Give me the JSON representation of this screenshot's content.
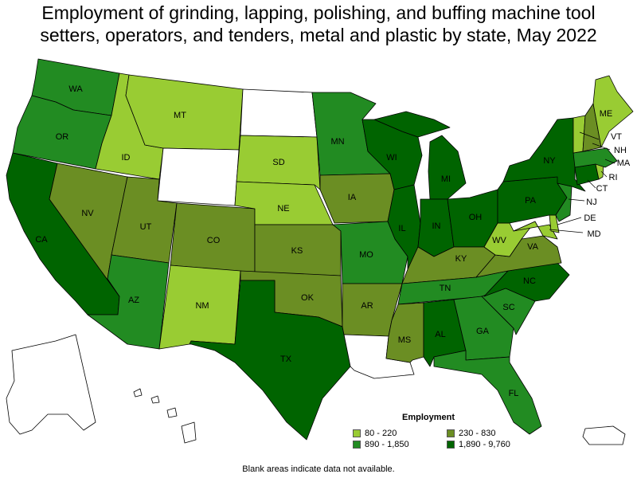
{
  "title": {
    "line1": "Employment of grinding, lapping, polishing, and buffing machine tool",
    "line2": "setters, operators, and tenders, metal and plastic by state, May 2022"
  },
  "legend": {
    "title": "Employment",
    "items": [
      {
        "label": "80 - 220",
        "color": "#99cc33"
      },
      {
        "label": "230 - 830",
        "color": "#6b8e23"
      },
      {
        "label": "890 - 1,850",
        "color": "#228b22"
      },
      {
        "label": "1,890 - 9,760",
        "color": "#006400"
      }
    ]
  },
  "footnote": "Blank areas indicate data not available.",
  "colors": {
    "bin1": "#99cc33",
    "bin2": "#6b8e23",
    "bin3": "#228b22",
    "bin4": "#006400",
    "no_data": "#ffffff"
  },
  "states": {
    "WA": {
      "label": "WA",
      "bin": 3
    },
    "OR": {
      "label": "OR",
      "bin": 3
    },
    "CA": {
      "label": "CA",
      "bin": 4
    },
    "ID": {
      "label": "ID",
      "bin": 1
    },
    "NV": {
      "label": "NV",
      "bin": 2
    },
    "MT": {
      "label": "MT",
      "bin": 1
    },
    "WY": {
      "label": "",
      "bin": 0
    },
    "UT": {
      "label": "UT",
      "bin": 2
    },
    "AZ": {
      "label": "AZ",
      "bin": 3
    },
    "CO": {
      "label": "CO",
      "bin": 2
    },
    "NM": {
      "label": "NM",
      "bin": 1
    },
    "ND": {
      "label": "",
      "bin": 0
    },
    "SD": {
      "label": "SD",
      "bin": 1
    },
    "NE": {
      "label": "NE",
      "bin": 1
    },
    "KS": {
      "label": "KS",
      "bin": 2
    },
    "OK": {
      "label": "OK",
      "bin": 2
    },
    "TX": {
      "label": "TX",
      "bin": 4
    },
    "MN": {
      "label": "MN",
      "bin": 3
    },
    "IA": {
      "label": "IA",
      "bin": 2
    },
    "MO": {
      "label": "MO",
      "bin": 3
    },
    "AR": {
      "label": "AR",
      "bin": 2
    },
    "LA": {
      "label": "",
      "bin": 0
    },
    "WI": {
      "label": "WI",
      "bin": 4
    },
    "IL": {
      "label": "IL",
      "bin": 4
    },
    "MI": {
      "label": "MI",
      "bin": 4
    },
    "IN": {
      "label": "IN",
      "bin": 4
    },
    "OH": {
      "label": "OH",
      "bin": 4
    },
    "KY": {
      "label": "KY",
      "bin": 2
    },
    "TN": {
      "label": "TN",
      "bin": 3
    },
    "MS": {
      "label": "MS",
      "bin": 2
    },
    "AL": {
      "label": "AL",
      "bin": 4
    },
    "GA": {
      "label": "GA",
      "bin": 3
    },
    "FL": {
      "label": "FL",
      "bin": 3
    },
    "SC": {
      "label": "SC",
      "bin": 3
    },
    "NC": {
      "label": "NC",
      "bin": 4
    },
    "VA": {
      "label": "VA",
      "bin": 2
    },
    "WV": {
      "label": "WV",
      "bin": 1
    },
    "PA": {
      "label": "PA",
      "bin": 4
    },
    "NY": {
      "label": "NY",
      "bin": 4
    },
    "NJ": {
      "label": "NJ",
      "bin": 3
    },
    "DE": {
      "label": "DE",
      "bin": 1
    },
    "MD": {
      "label": "MD",
      "bin": 1
    },
    "CT": {
      "label": "CT",
      "bin": 4
    },
    "RI": {
      "label": "RI",
      "bin": 1
    },
    "MA": {
      "label": "MA",
      "bin": 3
    },
    "VT": {
      "label": "VT",
      "bin": 1
    },
    "NH": {
      "label": "NH",
      "bin": 2
    },
    "ME": {
      "label": "ME",
      "bin": 1
    },
    "AK": {
      "label": "",
      "bin": 0
    },
    "HI": {
      "label": "",
      "bin": 0
    },
    "PR": {
      "label": "",
      "bin": 0
    }
  }
}
